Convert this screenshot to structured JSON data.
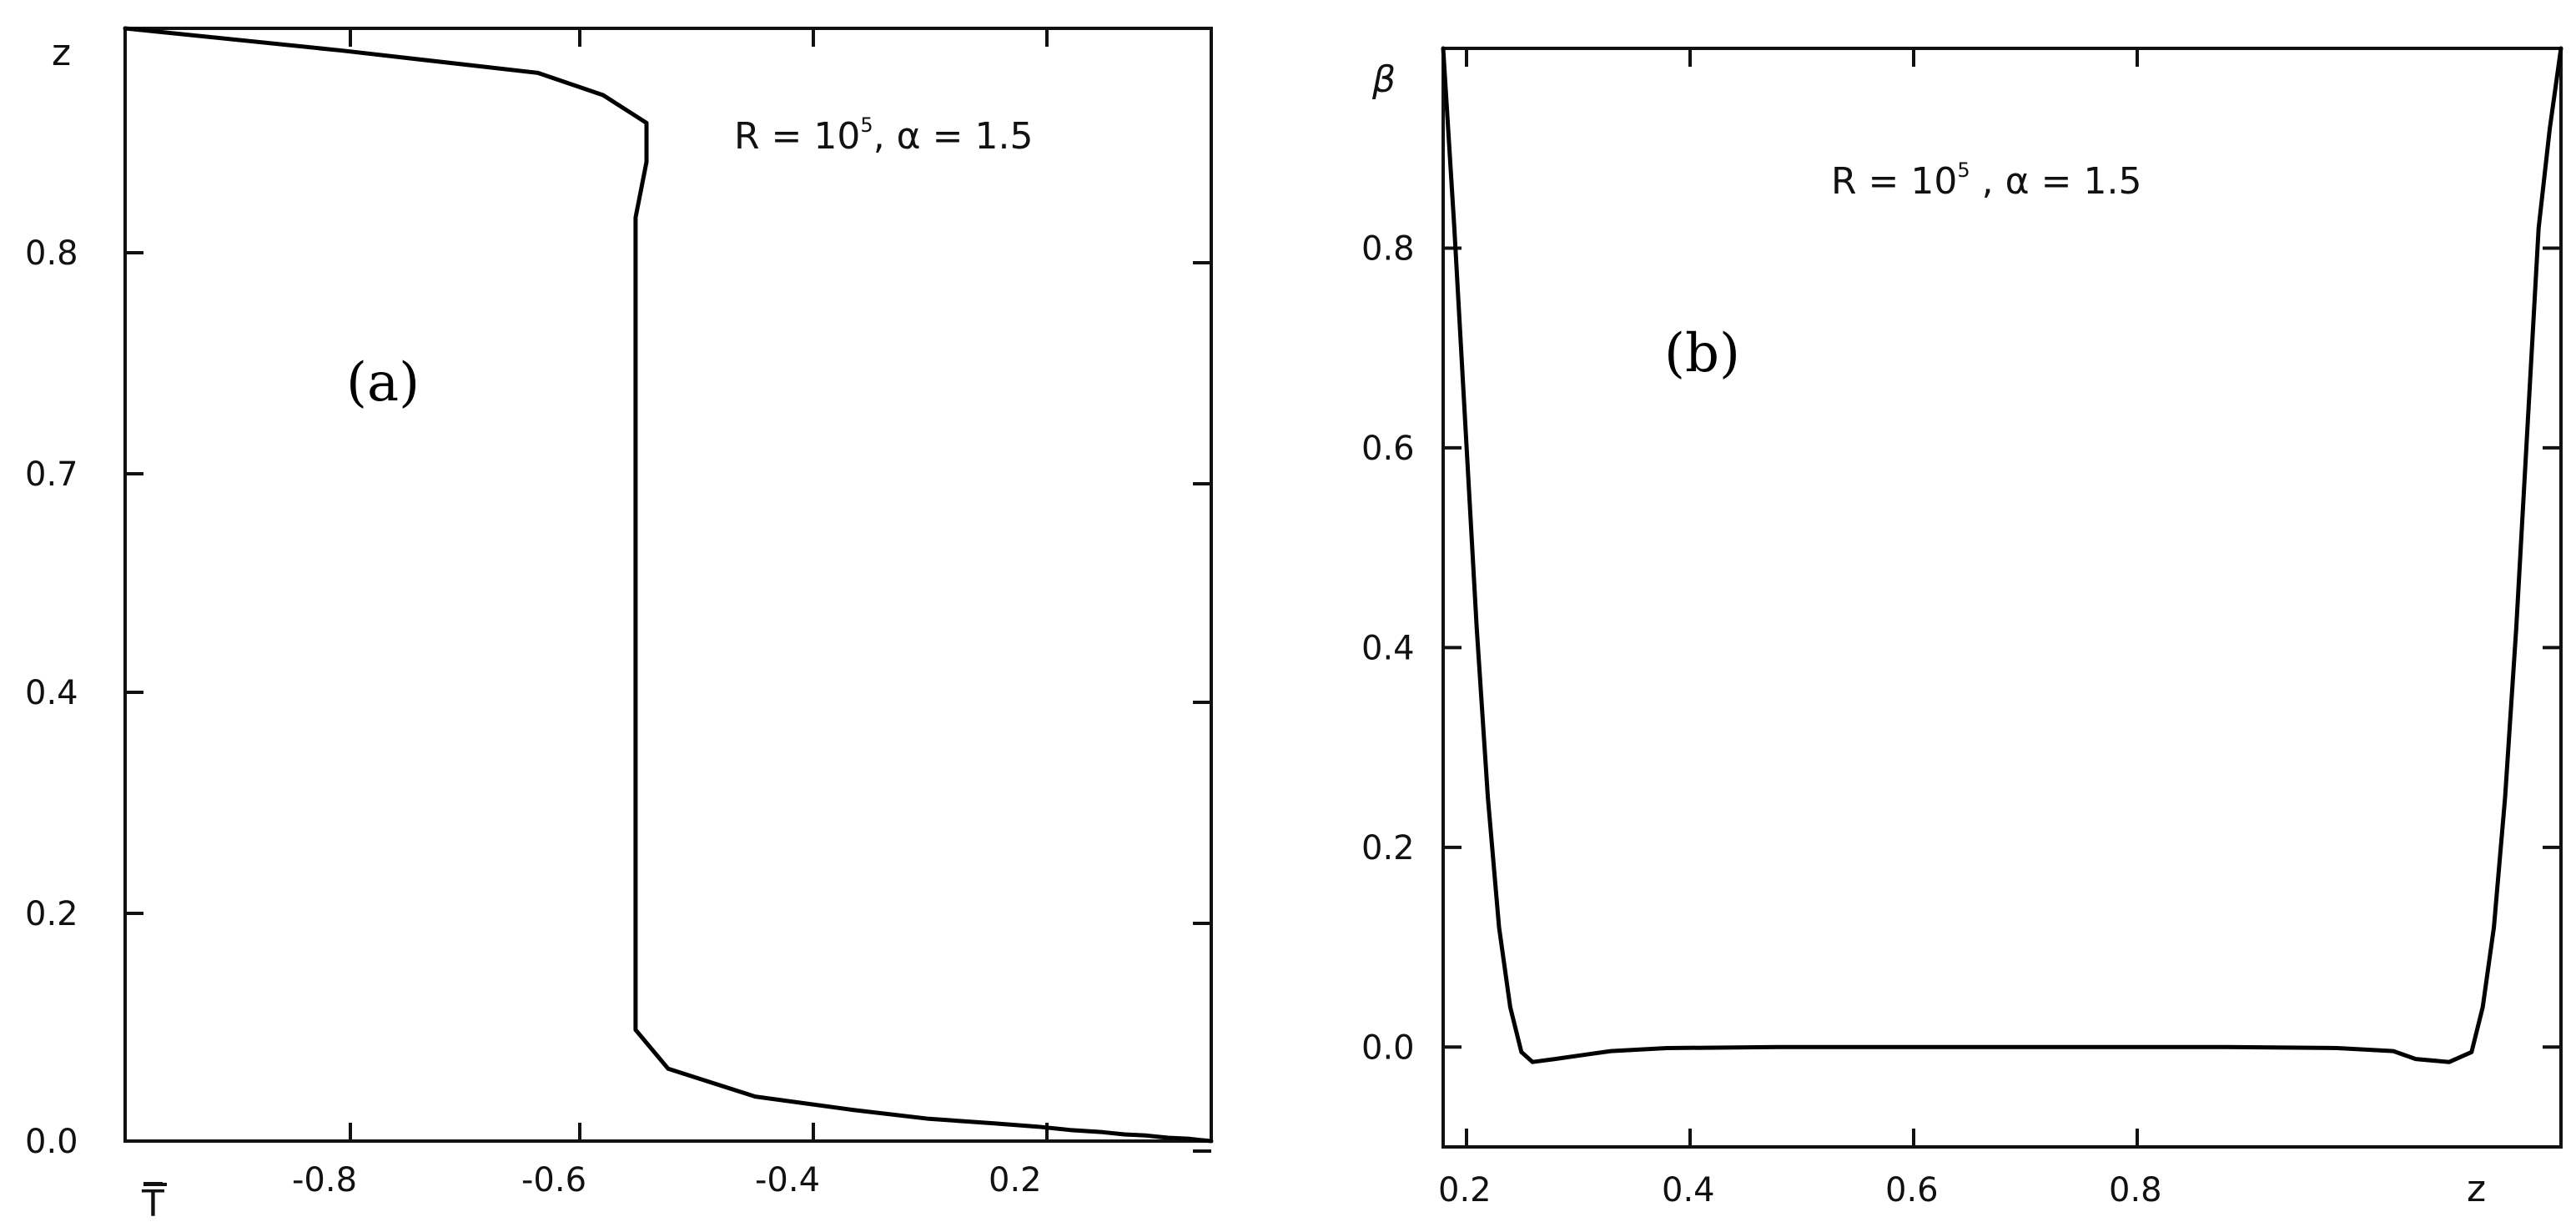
{
  "chart_data": [
    {
      "type": "line",
      "panel_label": "(a)",
      "annotation": {
        "text": "R = 10",
        "exponent": "5",
        "suffix": ", α = 1.5"
      },
      "xlabel": "T̅",
      "ylabel": "z",
      "x_tick_labels": [
        "-0.8",
        "-0.6",
        "-0.4",
        "0.2"
      ],
      "y_tick_labels": [
        "0.0",
        "0.2",
        "0.4",
        "0.7",
        "0.8"
      ],
      "series": [
        {
          "x": [
            -1.0,
            -0.8,
            -0.62,
            -0.56,
            -0.52,
            -0.52,
            -0.53,
            -0.53,
            -0.53,
            -0.53,
            -0.53,
            -0.53,
            -0.5,
            -0.42,
            -0.33,
            -0.26,
            -0.2,
            -0.16,
            -0.13,
            -0.1,
            -0.08,
            -0.06,
            -0.04,
            -0.02,
            -0.01,
            0.0
          ],
          "y": [
            1.0,
            0.98,
            0.96,
            0.94,
            0.915,
            0.88,
            0.83,
            0.7,
            0.5,
            0.3,
            0.15,
            0.1,
            0.065,
            0.04,
            0.028,
            0.02,
            0.016,
            0.013,
            0.01,
            0.008,
            0.006,
            0.005,
            0.003,
            0.002,
            0.001,
            0.0
          ]
        }
      ]
    },
    {
      "type": "line",
      "panel_label": "(b)",
      "annotation": {
        "text": "R = 10",
        "exponent": "5",
        "suffix": " , α = 1.5"
      },
      "xlabel": "z",
      "ylabel": "β",
      "x_tick_labels": [
        "0.2",
        "0.4",
        "0.6",
        "0.8"
      ],
      "y_tick_labels": [
        "0.0",
        "0.2",
        "0.4",
        "0.6",
        "0.8"
      ],
      "series": [
        {
          "x": [
            0.0,
            0.01,
            0.02,
            0.03,
            0.04,
            0.05,
            0.06,
            0.07,
            0.08,
            0.1,
            0.15,
            0.2,
            0.3,
            0.4,
            0.5,
            0.6,
            0.7,
            0.8,
            0.85,
            0.87,
            0.9,
            0.92,
            0.93,
            0.94,
            0.95,
            0.96,
            0.97,
            0.98,
            0.99,
            1.0
          ],
          "y": [
            1.0,
            0.82,
            0.62,
            0.42,
            0.25,
            0.12,
            0.04,
            -0.005,
            -0.015,
            -0.012,
            -0.004,
            -0.001,
            0.0,
            0.0,
            0.0,
            0.0,
            0.0,
            -0.001,
            -0.004,
            -0.012,
            -0.015,
            -0.005,
            0.04,
            0.12,
            0.25,
            0.42,
            0.62,
            0.82,
            0.92,
            1.0
          ]
        }
      ]
    }
  ]
}
